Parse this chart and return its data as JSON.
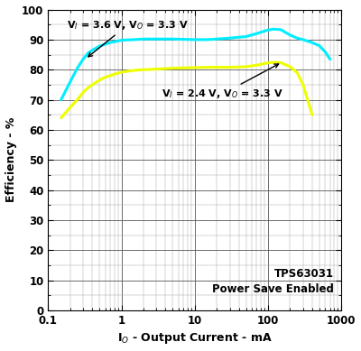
{
  "xlabel": "I$_O$ - Output Current - mA",
  "ylabel": "Efficiency - %",
  "xlim": [
    0.1,
    1000
  ],
  "ylim": [
    0,
    100
  ],
  "yticks": [
    0,
    10,
    20,
    30,
    40,
    50,
    60,
    70,
    80,
    90,
    100
  ],
  "annotation_text1": "TPS63031\nPower Save Enabled",
  "label1": "V$_I$ = 3.6 V, V$_O$ = 3.3 V",
  "label2": "V$_I$ = 2.4 V, V$_O$ = 3.3 V",
  "color1": "#00EEFF",
  "color2": "#EEFF00",
  "curve1_x": [
    0.15,
    0.2,
    0.25,
    0.3,
    0.35,
    0.4,
    0.5,
    0.6,
    0.7,
    0.8,
    1.0,
    1.5,
    2.0,
    3.0,
    5.0,
    7.0,
    10.0,
    15.0,
    20.0,
    30.0,
    50.0,
    70.0,
    100.0,
    120.0,
    150.0,
    200.0,
    250.0,
    300.0,
    400.0,
    500.0,
    600.0,
    700.0
  ],
  "curve1_y": [
    70.0,
    76.0,
    80.5,
    83.5,
    85.5,
    86.5,
    87.8,
    88.5,
    89.0,
    89.3,
    89.8,
    90.0,
    90.2,
    90.2,
    90.2,
    90.1,
    90.0,
    90.0,
    90.2,
    90.5,
    91.0,
    92.0,
    93.2,
    93.5,
    93.3,
    91.5,
    90.5,
    90.0,
    89.0,
    88.0,
    86.0,
    83.5
  ],
  "curve2_x": [
    0.15,
    0.2,
    0.25,
    0.3,
    0.35,
    0.4,
    0.5,
    0.6,
    0.7,
    0.8,
    1.0,
    1.5,
    2.0,
    3.0,
    5.0,
    7.0,
    10.0,
    15.0,
    20.0,
    30.0,
    50.0,
    70.0,
    100.0,
    130.0,
    150.0,
    200.0,
    250.0,
    300.0,
    400.0
  ],
  "curve2_y": [
    64.0,
    67.5,
    70.0,
    72.5,
    74.0,
    75.0,
    76.5,
    77.5,
    78.0,
    78.5,
    79.2,
    79.8,
    80.0,
    80.2,
    80.5,
    80.6,
    80.7,
    80.8,
    80.8,
    80.8,
    81.0,
    81.5,
    82.3,
    82.5,
    82.3,
    81.0,
    79.0,
    75.0,
    65.0
  ]
}
